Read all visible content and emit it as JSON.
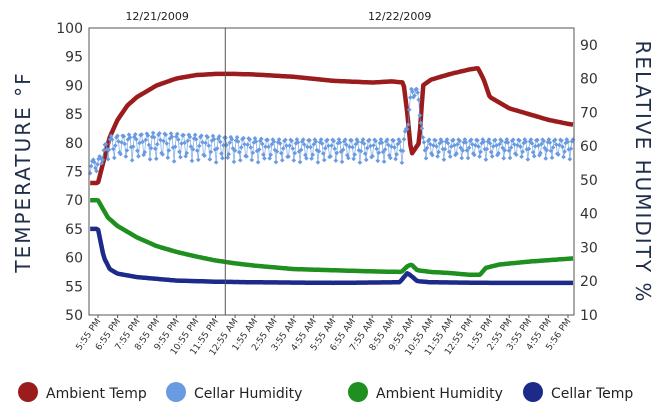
{
  "chart_data": {
    "type": "line",
    "dates": [
      "12/21/2009",
      "12/22/2009"
    ],
    "x_ticks": [
      "5:55 PM",
      "6:55 PM",
      "7:55 PM",
      "8:55 PM",
      "9:55 PM",
      "10:55 PM",
      "11:55 PM",
      "12:55 AM",
      "1:55 AM",
      "2:55 AM",
      "3:55 AM",
      "4:55 AM",
      "5:55 AM",
      "6:55 AM",
      "7:55 AM",
      "8:55 AM",
      "9:55 AM",
      "10:55 AM",
      "11:55 AM",
      "12:55 PM",
      "1:55 PM",
      "2:55 PM",
      "3:55 PM",
      "4:55 PM",
      "5:56 PM"
    ],
    "ylabel_left": "TEMPERATURE  °F",
    "ylabel_right": "RELATIVE HUMIDITY  %",
    "ylim_left": [
      50,
      100
    ],
    "yticks_left": [
      50,
      55,
      60,
      65,
      70,
      75,
      80,
      85,
      90,
      95,
      100
    ],
    "ylim_right": [
      10,
      95
    ],
    "yticks_right": [
      10,
      20,
      30,
      40,
      50,
      60,
      70,
      80,
      90
    ],
    "legend_position": "bottom",
    "series": [
      {
        "name": "Ambient Temp",
        "axis": "left",
        "color": "#9b1c1c",
        "points": [
          [
            0,
            73
          ],
          [
            0.3,
            77
          ],
          [
            0.6,
            81
          ],
          [
            1,
            84
          ],
          [
            1.5,
            86.5
          ],
          [
            2,
            88
          ],
          [
            3,
            90
          ],
          [
            4,
            91.2
          ],
          [
            5,
            91.8
          ],
          [
            6,
            92
          ],
          [
            7,
            92
          ],
          [
            8,
            91.9
          ],
          [
            10,
            91.5
          ],
          [
            12,
            90.8
          ],
          [
            14,
            90.5
          ],
          [
            15,
            90.7
          ],
          [
            15.6,
            90.5
          ],
          [
            15.8,
            85
          ],
          [
            16,
            78
          ],
          [
            16.2,
            79
          ],
          [
            16.4,
            80
          ],
          [
            16.6,
            90
          ],
          [
            17,
            91
          ],
          [
            18,
            92
          ],
          [
            19,
            92.8
          ],
          [
            19.4,
            93
          ],
          [
            19.7,
            91
          ],
          [
            20,
            88
          ],
          [
            21,
            86
          ],
          [
            22,
            85
          ],
          [
            23,
            84
          ],
          [
            24,
            83.3
          ],
          [
            25,
            82.8
          ]
        ]
      },
      {
        "name": "Cellar Humidity",
        "axis": "right",
        "color": "#6a9be0",
        "band_low": [
          [
            0,
            52
          ],
          [
            0.3,
            55
          ],
          [
            0.6,
            56
          ],
          [
            3,
            55.5
          ],
          [
            6,
            55
          ],
          [
            9,
            55
          ],
          [
            12,
            55
          ],
          [
            15.6,
            55
          ],
          [
            15.8,
            64
          ],
          [
            16,
            73
          ],
          [
            16.2,
            74
          ],
          [
            16.4,
            71
          ],
          [
            16.6,
            56
          ],
          [
            18,
            56
          ],
          [
            21,
            56
          ],
          [
            25,
            56
          ]
        ],
        "band_high": [
          [
            0,
            56
          ],
          [
            0.3,
            60
          ],
          [
            0.6,
            63
          ],
          [
            3,
            64
          ],
          [
            6,
            63
          ],
          [
            9,
            62
          ],
          [
            12,
            62
          ],
          [
            15.6,
            62
          ],
          [
            15.8,
            68
          ],
          [
            16,
            77
          ],
          [
            16.2,
            78
          ],
          [
            16.4,
            75
          ],
          [
            16.6,
            62
          ],
          [
            18,
            62
          ],
          [
            21,
            62
          ],
          [
            25,
            62
          ]
        ]
      },
      {
        "name": "Ambient Humidity",
        "axis": "left",
        "color": "#1f8f1f",
        "points": [
          [
            0,
            70
          ],
          [
            0.5,
            67
          ],
          [
            1,
            65.5
          ],
          [
            2,
            63.5
          ],
          [
            3,
            62
          ],
          [
            4,
            61
          ],
          [
            5,
            60.2
          ],
          [
            6,
            59.5
          ],
          [
            7,
            59
          ],
          [
            8,
            58.6
          ],
          [
            10,
            58
          ],
          [
            12,
            57.8
          ],
          [
            14,
            57.6
          ],
          [
            15.5,
            57.5
          ],
          [
            15.8,
            58.5
          ],
          [
            16,
            58.8
          ],
          [
            16.3,
            57.8
          ],
          [
            17,
            57.5
          ],
          [
            18,
            57.3
          ],
          [
            19,
            57
          ],
          [
            19.5,
            57
          ],
          [
            19.8,
            58.2
          ],
          [
            20.5,
            58.8
          ],
          [
            22,
            59.3
          ],
          [
            24,
            59.8
          ],
          [
            25,
            60
          ]
        ]
      },
      {
        "name": "Cellar Temp",
        "axis": "left",
        "color": "#1c2a8a",
        "points": [
          [
            0,
            65
          ],
          [
            0.3,
            60
          ],
          [
            0.6,
            58
          ],
          [
            1,
            57.2
          ],
          [
            2,
            56.6
          ],
          [
            3,
            56.3
          ],
          [
            4,
            56
          ],
          [
            6,
            55.8
          ],
          [
            8,
            55.7
          ],
          [
            12,
            55.6
          ],
          [
            15.4,
            55.7
          ],
          [
            15.6,
            56.5
          ],
          [
            15.8,
            57.3
          ],
          [
            16,
            56.8
          ],
          [
            16.3,
            55.9
          ],
          [
            17,
            55.7
          ],
          [
            20,
            55.6
          ],
          [
            25,
            55.6
          ]
        ]
      }
    ]
  }
}
